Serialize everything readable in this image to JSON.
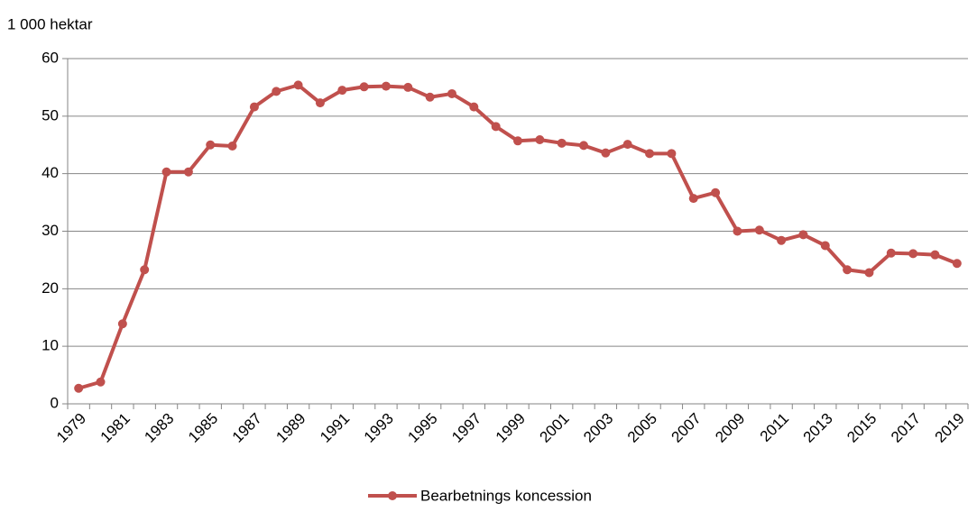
{
  "chart_data": {
    "type": "line",
    "y_label": "1 000 hektar",
    "categories": [
      "1979",
      null,
      "1981",
      null,
      "1983",
      null,
      "1985",
      null,
      "1987",
      null,
      "1989",
      null,
      "1991",
      null,
      "1993",
      null,
      "1995",
      null,
      "1997",
      null,
      "1999",
      null,
      "2001",
      null,
      "2003",
      null,
      "2005",
      null,
      "2007",
      null,
      "2009",
      null,
      "2011",
      null,
      "2013",
      null,
      "2015",
      null,
      "2017",
      null,
      "2019"
    ],
    "series": [
      {
        "name": "Bearbetnings koncession",
        "color": "#c0504d",
        "values": [
          2.7,
          3.8,
          13.9,
          23.3,
          40.3,
          40.3,
          45.0,
          44.8,
          51.6,
          54.3,
          55.4,
          52.3,
          54.5,
          55.1,
          55.2,
          55.0,
          53.3,
          53.9,
          51.6,
          48.2,
          45.7,
          45.9,
          45.3,
          44.9,
          43.6,
          45.1,
          43.5,
          43.5,
          35.7,
          36.7,
          30.0,
          30.2,
          28.4,
          29.4,
          27.5,
          23.3,
          22.8,
          26.2,
          26.1,
          25.9,
          24.4
        ]
      }
    ],
    "ylim": [
      0,
      60
    ],
    "yticks": [
      0,
      10,
      20,
      30,
      40,
      50,
      60
    ],
    "grid": true,
    "legend": "bottom"
  }
}
